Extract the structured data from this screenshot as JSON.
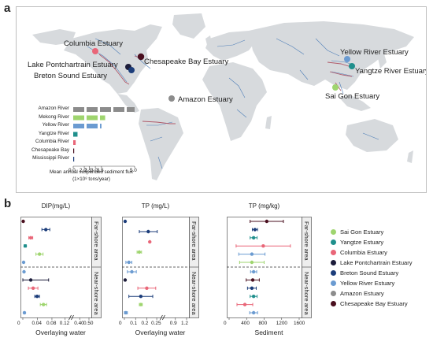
{
  "panel_a_letter": "a",
  "panel_b_letter": "b",
  "colors": {
    "land": "#d7dadd",
    "river": "#4f7fb8",
    "sai_gon": "#9fd56f",
    "yangtze": "#1f8f8c",
    "columbia": "#e96678",
    "lake_pontchartrain": "#1c1c3a",
    "breton_sound": "#1c3d7a",
    "yellow_river": "#6b9bd1",
    "amazon": "#8c8c8c",
    "chesapeake": "#4a0f1f"
  },
  "estuaries": {
    "columbia": "Columbia Estuary",
    "lake_pontchartrain": "Lake Pontchartrain Estuary",
    "breton_sound": "Breton Sound Estuary",
    "chesapeake": "Chesapeake Bay Estuary",
    "amazon": "Amazon Estuary",
    "yellow_river": "Yellow River Estuary",
    "yangtze": "Yangtze River Estuary",
    "sai_gon": "Sai Gon Estuary"
  },
  "chart_data": [
    {
      "type": "bar",
      "orientation": "horizontal",
      "categories": [
        "Amazon River",
        "Mekong River",
        "Yellow River",
        "Yangtze River",
        "Columbia River",
        "Chesapeake Bay",
        "Mississippi River"
      ],
      "values": [
        5.0,
        2.6,
        2.3,
        0.35,
        0.2,
        0.06,
        0.05
      ],
      "colors": [
        "#8c8c8c",
        "#9fd56f",
        "#6b9bd1",
        "#1f8f8c",
        "#e96678",
        "#4a0f1f",
        "#1c3d7a"
      ],
      "bar_style": "dashed segments",
      "xticks": [
        "0.0",
        "2.0",
        "2.5",
        "3.0",
        "3.5",
        "5.0"
      ],
      "xlim": [
        0,
        5.0
      ],
      "xlabel_line1": "Mean annual suspended sediment flux",
      "xlabel_line2": "(1×10⁸ tons/year)"
    },
    {
      "type": "scatter",
      "title": "DIP(mg/L)",
      "xlabel": "Overlaying water",
      "xticks": [
        "0",
        "0.04",
        "0.08",
        "0.12",
        "0.40",
        "0.50"
      ],
      "axis_break": true,
      "row_groups": [
        "Far-shore area",
        "Near-shore area"
      ],
      "points": [
        {
          "estuary": "Chesapeake Bay Estuary",
          "area": "far",
          "x": 0.001,
          "err": 0
        },
        {
          "estuary": "Breton Sound Estuary",
          "area": "far",
          "x": 0.058,
          "err": 0.01
        },
        {
          "estuary": "Columbia Estuary",
          "area": "far",
          "x": 0.02,
          "err": 0.005
        },
        {
          "estuary": "Yangtze River Estuary",
          "area": "far",
          "x": 0.006,
          "err": 0.003
        },
        {
          "estuary": "Sai Gon Estuary",
          "area": "far",
          "x": 0.042,
          "err": 0.009
        },
        {
          "estuary": "Yellow River Estuary",
          "area": "far",
          "x": 0.002,
          "err": 0.001
        },
        {
          "estuary": "Yellow River Estuary",
          "area": "near",
          "x": 0.003,
          "err": 0.001
        },
        {
          "estuary": "Lake Pontchartrain Estuary",
          "area": "near",
          "x": 0.02,
          "err": 0.045
        },
        {
          "estuary": "Columbia Estuary",
          "area": "near",
          "x": 0.026,
          "err": 0.012
        },
        {
          "estuary": "Breton Sound Estuary",
          "area": "near",
          "x": 0.036,
          "err": 0.006
        },
        {
          "estuary": "Sai Gon Estuary",
          "area": "near",
          "x": 0.052,
          "err": 0.008
        },
        {
          "estuary": "Yellow River Estuary",
          "area": "near",
          "x": 0.004,
          "err": 0.002
        }
      ]
    },
    {
      "type": "scatter",
      "title": "TP (mg/L)",
      "xlabel": "Overlaying water",
      "xticks": [
        "0",
        "0.1",
        "0.2",
        "0.25",
        "0.9",
        "1.2"
      ],
      "axis_break": true,
      "row_groups": [
        "Far-shore area",
        "Near-shore area"
      ],
      "points": [
        {
          "estuary": "Breton Sound Estuary",
          "area": "far",
          "x": 0.005,
          "err": 0
        },
        {
          "estuary": "Breton Sound Estuary",
          "area": "far",
          "x": 0.16,
          "err": 0.06
        },
        {
          "estuary": "Columbia Estuary",
          "area": "far",
          "x": 0.17,
          "err": 0
        },
        {
          "estuary": "Sai Gon Estuary",
          "area": "far",
          "x": 0.1,
          "err": 0.015
        },
        {
          "estuary": "Yellow River Estuary",
          "area": "far",
          "x": 0.03,
          "err": 0.02
        },
        {
          "estuary": "Yellow River Estuary",
          "area": "near",
          "x": 0.05,
          "err": 0.03
        },
        {
          "estuary": "Lake Pontchartrain Estuary",
          "area": "near",
          "x": 0.005,
          "err": 0
        },
        {
          "estuary": "Columbia Estuary",
          "area": "near",
          "x": 0.15,
          "err": 0.06
        },
        {
          "estuary": "Breton Sound Estuary",
          "area": "near",
          "x": 0.11,
          "err": 0.08
        },
        {
          "estuary": "Sai Gon Estuary",
          "area": "near",
          "x": 0.11,
          "err": 0.01
        },
        {
          "estuary": "Yellow River Estuary",
          "area": "near",
          "x": 0.01,
          "err": 0.01
        }
      ]
    },
    {
      "type": "scatter",
      "title": "TP (mg/kg)",
      "xlabel": "Sediment",
      "xticks": [
        "0",
        "400",
        "800",
        "1200",
        "1600"
      ],
      "row_groups": [
        "Far-shore area",
        "Near-shore area"
      ],
      "points": [
        {
          "estuary": "Chesapeake Bay Estuary",
          "area": "far",
          "x": 860,
          "err": 380
        },
        {
          "estuary": "Breton Sound Estuary",
          "area": "far",
          "x": 590,
          "err": 60
        },
        {
          "estuary": "Yangtze River Estuary",
          "area": "far",
          "x": 560,
          "err": 80
        },
        {
          "estuary": "Columbia Estuary",
          "area": "far",
          "x": 780,
          "err": 620
        },
        {
          "estuary": "Yellow River Estuary",
          "area": "far",
          "x": 520,
          "err": 300
        },
        {
          "estuary": "Sai Gon Estuary",
          "area": "far",
          "x": 520,
          "err": 280
        },
        {
          "estuary": "Yellow River Estuary",
          "area": "near",
          "x": 560,
          "err": 70
        },
        {
          "estuary": "Chesapeake Bay Estuary",
          "area": "near",
          "x": 540,
          "err": 150
        },
        {
          "estuary": "Breton Sound Estuary",
          "area": "near",
          "x": 520,
          "err": 100
        },
        {
          "estuary": "Yangtze River Estuary",
          "area": "near",
          "x": 560,
          "err": 80
        },
        {
          "estuary": "Columbia Estuary",
          "area": "near",
          "x": 360,
          "err": 180
        },
        {
          "estuary": "Yellow River Estuary",
          "area": "near",
          "x": 560,
          "err": 90
        }
      ]
    }
  ],
  "legend": [
    {
      "label": "Sai Gon Estuary",
      "color": "#9fd56f"
    },
    {
      "label": "Yangtze Estuary",
      "color": "#1f8f8c"
    },
    {
      "label": "Columbia Estuary",
      "color": "#e96678"
    },
    {
      "label": "Lake Pontchartrain Estuary",
      "color": "#1c1c3a"
    },
    {
      "label": "Breton Sound Estuary",
      "color": "#1c3d7a"
    },
    {
      "label": "Yellow River Estuary",
      "color": "#6b9bd1"
    },
    {
      "label": "Amazon Estuary",
      "color": "#8c8c8c"
    },
    {
      "label": "Chesapeake Bay Estuary",
      "color": "#4a0f1f"
    }
  ]
}
